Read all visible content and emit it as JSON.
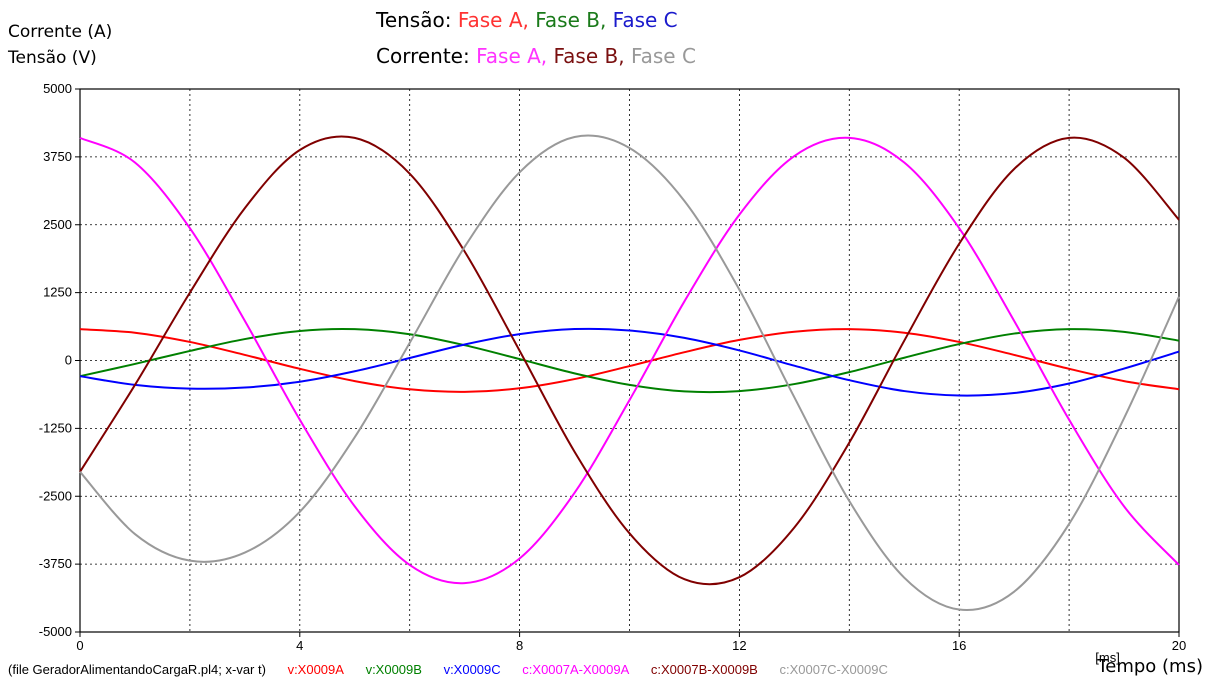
{
  "y_labels": {
    "line1": "Corrente (A)",
    "line2": "Tensão (V)"
  },
  "legend": {
    "row1_prefix": "Tensão:",
    "row1": [
      {
        "text": "Fase A,",
        "color": "#ff3333"
      },
      {
        "text": "Fase B,",
        "color": "#1a7a1a"
      },
      {
        "text": "Fase C",
        "color": "#1a1acc"
      }
    ],
    "row2_prefix": "Corrente:",
    "row2": [
      {
        "text": "Fase A,",
        "color": "#ff33ff"
      },
      {
        "text": "Fase B,",
        "color": "#7a1010"
      },
      {
        "text": "Fase C",
        "color": "#999999"
      }
    ]
  },
  "footer": {
    "file": "(file GeradorAlimentandoCargaR.pl4; x-var t)",
    "signals": [
      {
        "text": "v:X0009A",
        "color": "#ff0000"
      },
      {
        "text": "v:X0009B",
        "color": "#008000"
      },
      {
        "text": "v:X0009C",
        "color": "#0000ff"
      },
      {
        "text": "c:X0007A-X0009A",
        "color": "#ff00ff"
      },
      {
        "text": "c:X0007B-X0009B",
        "color": "#800000"
      },
      {
        "text": "c:X0007C-X0009C",
        "color": "#999999"
      }
    ],
    "x_title": "Tempo (ms)",
    "x_unit": "[ms]"
  },
  "chart_data": {
    "type": "line",
    "xlim": [
      0,
      20
    ],
    "ylim": [
      -5000,
      5000
    ],
    "x_ticks": [
      "0",
      "4",
      "8",
      "12",
      "16",
      "20"
    ],
    "y_ticks": [
      "5000",
      "3750",
      "2500",
      "1250",
      "0",
      "-1250",
      "-2500",
      "-3750",
      "-5000"
    ],
    "grid": true,
    "x": [
      0,
      1,
      2,
      3,
      4,
      5,
      6,
      7,
      8,
      9,
      10,
      11,
      12,
      13,
      14,
      15,
      16,
      17,
      18,
      19,
      20
    ],
    "series": [
      {
        "name": "v:X0009A",
        "color": "#ff0000",
        "values": [
          577,
          512,
          342,
          103,
          -153,
          -379,
          -530,
          -577,
          -512,
          -342,
          -103,
          153,
          379,
          530,
          577,
          512,
          342,
          103,
          -153,
          -379,
          -530
        ]
      },
      {
        "name": "v:X0009B",
        "color": "#008000",
        "values": [
          -289,
          -63,
          176,
          395,
          544,
          577,
          484,
          282,
          26,
          -237,
          -449,
          -569,
          -564,
          -434,
          -214,
          51,
          303,
          496,
          577,
          527,
          366
        ]
      },
      {
        "name": "v:X0009C",
        "color": "#0000ff",
        "values": [
          -289,
          -449,
          -518,
          -498,
          -391,
          -198,
          46,
          295,
          486,
          579,
          552,
          416,
          185,
          -96,
          -363,
          -563,
          -645,
          -599,
          -424,
          -148,
          164
        ]
      },
      {
        "name": "c:X0007A-X0009A",
        "color": "#ff00ff",
        "values": [
          4100,
          3646,
          2436,
          730,
          -1090,
          -2687,
          -3766,
          -4100,
          -3646,
          -2436,
          -730,
          1090,
          2687,
          3766,
          4100,
          3646,
          2436,
          730,
          -1090,
          -2687,
          -3766
        ]
      },
      {
        "name": "c:X0007B-X0009B",
        "color": "#800000",
        "values": [
          -2050,
          -450,
          1250,
          2807,
          3877,
          4100,
          3441,
          2007,
          180,
          -1680,
          -3183,
          -4028,
          -3991,
          -3075,
          -1512,
          365,
          2150,
          3527,
          4100,
          3735,
          2590
        ]
      },
      {
        "name": "c:X0007C-X0009C",
        "color": "#999999",
        "values": [
          -2050,
          -3196,
          -3686,
          -3537,
          -2787,
          -1413,
          325,
          2093,
          3466,
          4116,
          3913,
          2938,
          1303,
          -678,
          -2588,
          -3999,
          -4586,
          -4257,
          -3010,
          -1062,
          1176
        ]
      }
    ]
  }
}
